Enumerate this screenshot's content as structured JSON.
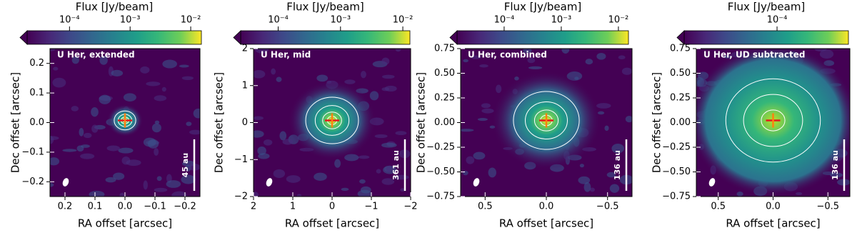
{
  "chart_data": [
    {
      "type": "image",
      "title": "U Her, extended",
      "colorbar_label": "Flux [Jy/beam]",
      "clim": [
        2e-05,
        0.015
      ],
      "log_color": true,
      "cticks": [
        {
          "value": 0.0001,
          "label": "10⁻⁴"
        },
        {
          "value": 0.001,
          "label": "10⁻³"
        },
        {
          "value": 0.01,
          "label": "10⁻²"
        }
      ],
      "xlabel": "RA offset [arcsec]",
      "ylabel": "Dec offset [arcsec]",
      "xlim": [
        0.25,
        -0.25
      ],
      "ylim": [
        -0.25,
        0.25
      ],
      "xticks": [
        0.2,
        0.1,
        {
          "value": 0,
          "label": "0.0"
        },
        {
          "value": -0.1,
          "label": "−0.1"
        },
        {
          "value": -0.2,
          "label": "−0.2"
        }
      ],
      "yticks": [
        {
          "value": -0.2,
          "label": "−0.2"
        },
        {
          "value": -0.1,
          "label": "−0.1"
        },
        {
          "value": 0,
          "label": "0.0"
        },
        0.1,
        0.2
      ],
      "scale_bar": "45 au"
    },
    {
      "type": "image",
      "title": "U Her, mid",
      "colorbar_label": "Flux [Jy/beam]",
      "clim": [
        2.5e-05,
        0.013
      ],
      "log_color": true,
      "cticks": [
        {
          "value": 0.0001,
          "label": "10⁻⁴"
        },
        {
          "value": 0.001,
          "label": "10⁻³"
        },
        {
          "value": 0.01,
          "label": "10⁻²"
        }
      ],
      "xlabel": "RA offset [arcsec]",
      "ylabel": "Dec offset [arcsec]",
      "xlim": [
        2,
        -2
      ],
      "ylim": [
        -2,
        2
      ],
      "xticks": [
        2,
        1,
        0,
        {
          "value": -1,
          "label": "−1"
        },
        {
          "value": -2,
          "label": "−2"
        }
      ],
      "yticks": [
        {
          "value": -2,
          "label": "−2"
        },
        {
          "value": -1,
          "label": "−1"
        },
        0,
        1,
        2
      ],
      "scale_bar": "361 au"
    },
    {
      "type": "image",
      "title": "U Her, combined",
      "colorbar_label": "Flux [Jy/beam]",
      "clim": [
        1.5e-05,
        0.015
      ],
      "log_color": true,
      "cticks": [
        {
          "value": 0.0001,
          "label": "10⁻⁴"
        },
        {
          "value": 0.001,
          "label": "10⁻³"
        },
        {
          "value": 0.01,
          "label": "10⁻²"
        }
      ],
      "xlabel": "RA offset [arcsec]",
      "ylabel": "Dec offset [arcsec]",
      "xlim": [
        0.7,
        -0.7
      ],
      "ylim": [
        -0.75,
        0.75
      ],
      "xticks": [
        0.5,
        {
          "value": 0,
          "label": "0.0"
        },
        {
          "value": -0.5,
          "label": "−0.5"
        }
      ],
      "yticks": [
        {
          "value": -0.75,
          "label": "−0.75"
        },
        {
          "value": -0.5,
          "label": "−0.50"
        },
        {
          "value": -0.25,
          "label": "−0.25"
        },
        {
          "value": 0,
          "label": "0.00"
        },
        0.25,
        {
          "value": 0.5,
          "label": "0.50"
        },
        0.75
      ],
      "scale_bar": "136 au"
    },
    {
      "type": "image",
      "title": "U Her, UD subtracted",
      "colorbar_label": "Flux [Jy/beam]",
      "clim": [
        5e-06,
        0.001
      ],
      "log_color": true,
      "cticks": [
        {
          "value": 0.0001,
          "label": "10⁻⁴"
        }
      ],
      "xlabel": "RA offset [arcsec]",
      "ylabel": "Dec offset [arcsec]",
      "xlim": [
        0.7,
        -0.7
      ],
      "ylim": [
        -0.75,
        0.75
      ],
      "xticks": [
        0.5,
        {
          "value": 0,
          "label": "0.0"
        },
        {
          "value": -0.5,
          "label": "−0.5"
        }
      ],
      "yticks": [
        {
          "value": -0.75,
          "label": "−0.75"
        },
        {
          "value": -0.5,
          "label": "−0.50"
        },
        {
          "value": -0.25,
          "label": "−0.25"
        },
        {
          "value": 0,
          "label": "0.00"
        },
        0.25,
        {
          "value": 0.5,
          "label": "0.50"
        },
        0.75
      ],
      "scale_bar": "136 au"
    }
  ]
}
